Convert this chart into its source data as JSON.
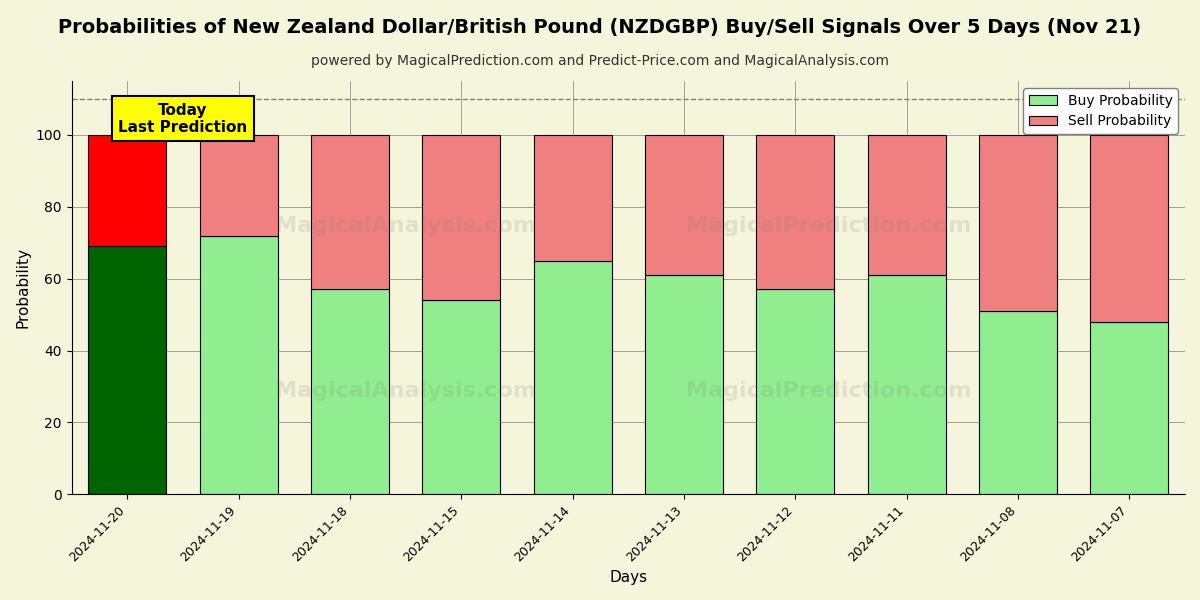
{
  "title": "Probabilities of New Zealand Dollar/British Pound (NZDGBP) Buy/Sell Signals Over 5 Days (Nov 21)",
  "subtitle": "powered by MagicalPrediction.com and Predict-Price.com and MagicalAnalysis.com",
  "xlabel": "Days",
  "ylabel": "Probability",
  "dates": [
    "2024-11-20",
    "2024-11-19",
    "2024-11-18",
    "2024-11-15",
    "2024-11-14",
    "2024-11-13",
    "2024-11-12",
    "2024-11-11",
    "2024-11-08",
    "2024-11-07"
  ],
  "buy_values": [
    69,
    72,
    57,
    54,
    65,
    61,
    57,
    61,
    51,
    48
  ],
  "sell_values": [
    31,
    28,
    43,
    46,
    35,
    39,
    43,
    39,
    49,
    52
  ],
  "today_buy_color": "#006400",
  "today_sell_color": "#ff0000",
  "buy_color": "#90EE90",
  "sell_color": "#F08080",
  "today_annotation_bg": "#ffff00",
  "today_annotation_text": "Today\nLast Prediction",
  "ylim": [
    0,
    115
  ],
  "dashed_line_y": 110,
  "legend_buy": "Buy Probability",
  "legend_sell": "Sell Probability",
  "title_fontsize": 14,
  "subtitle_fontsize": 10,
  "bar_edge_color": "#000000",
  "bar_linewidth": 0.8,
  "fig_bg_color": "#f5f5dc"
}
